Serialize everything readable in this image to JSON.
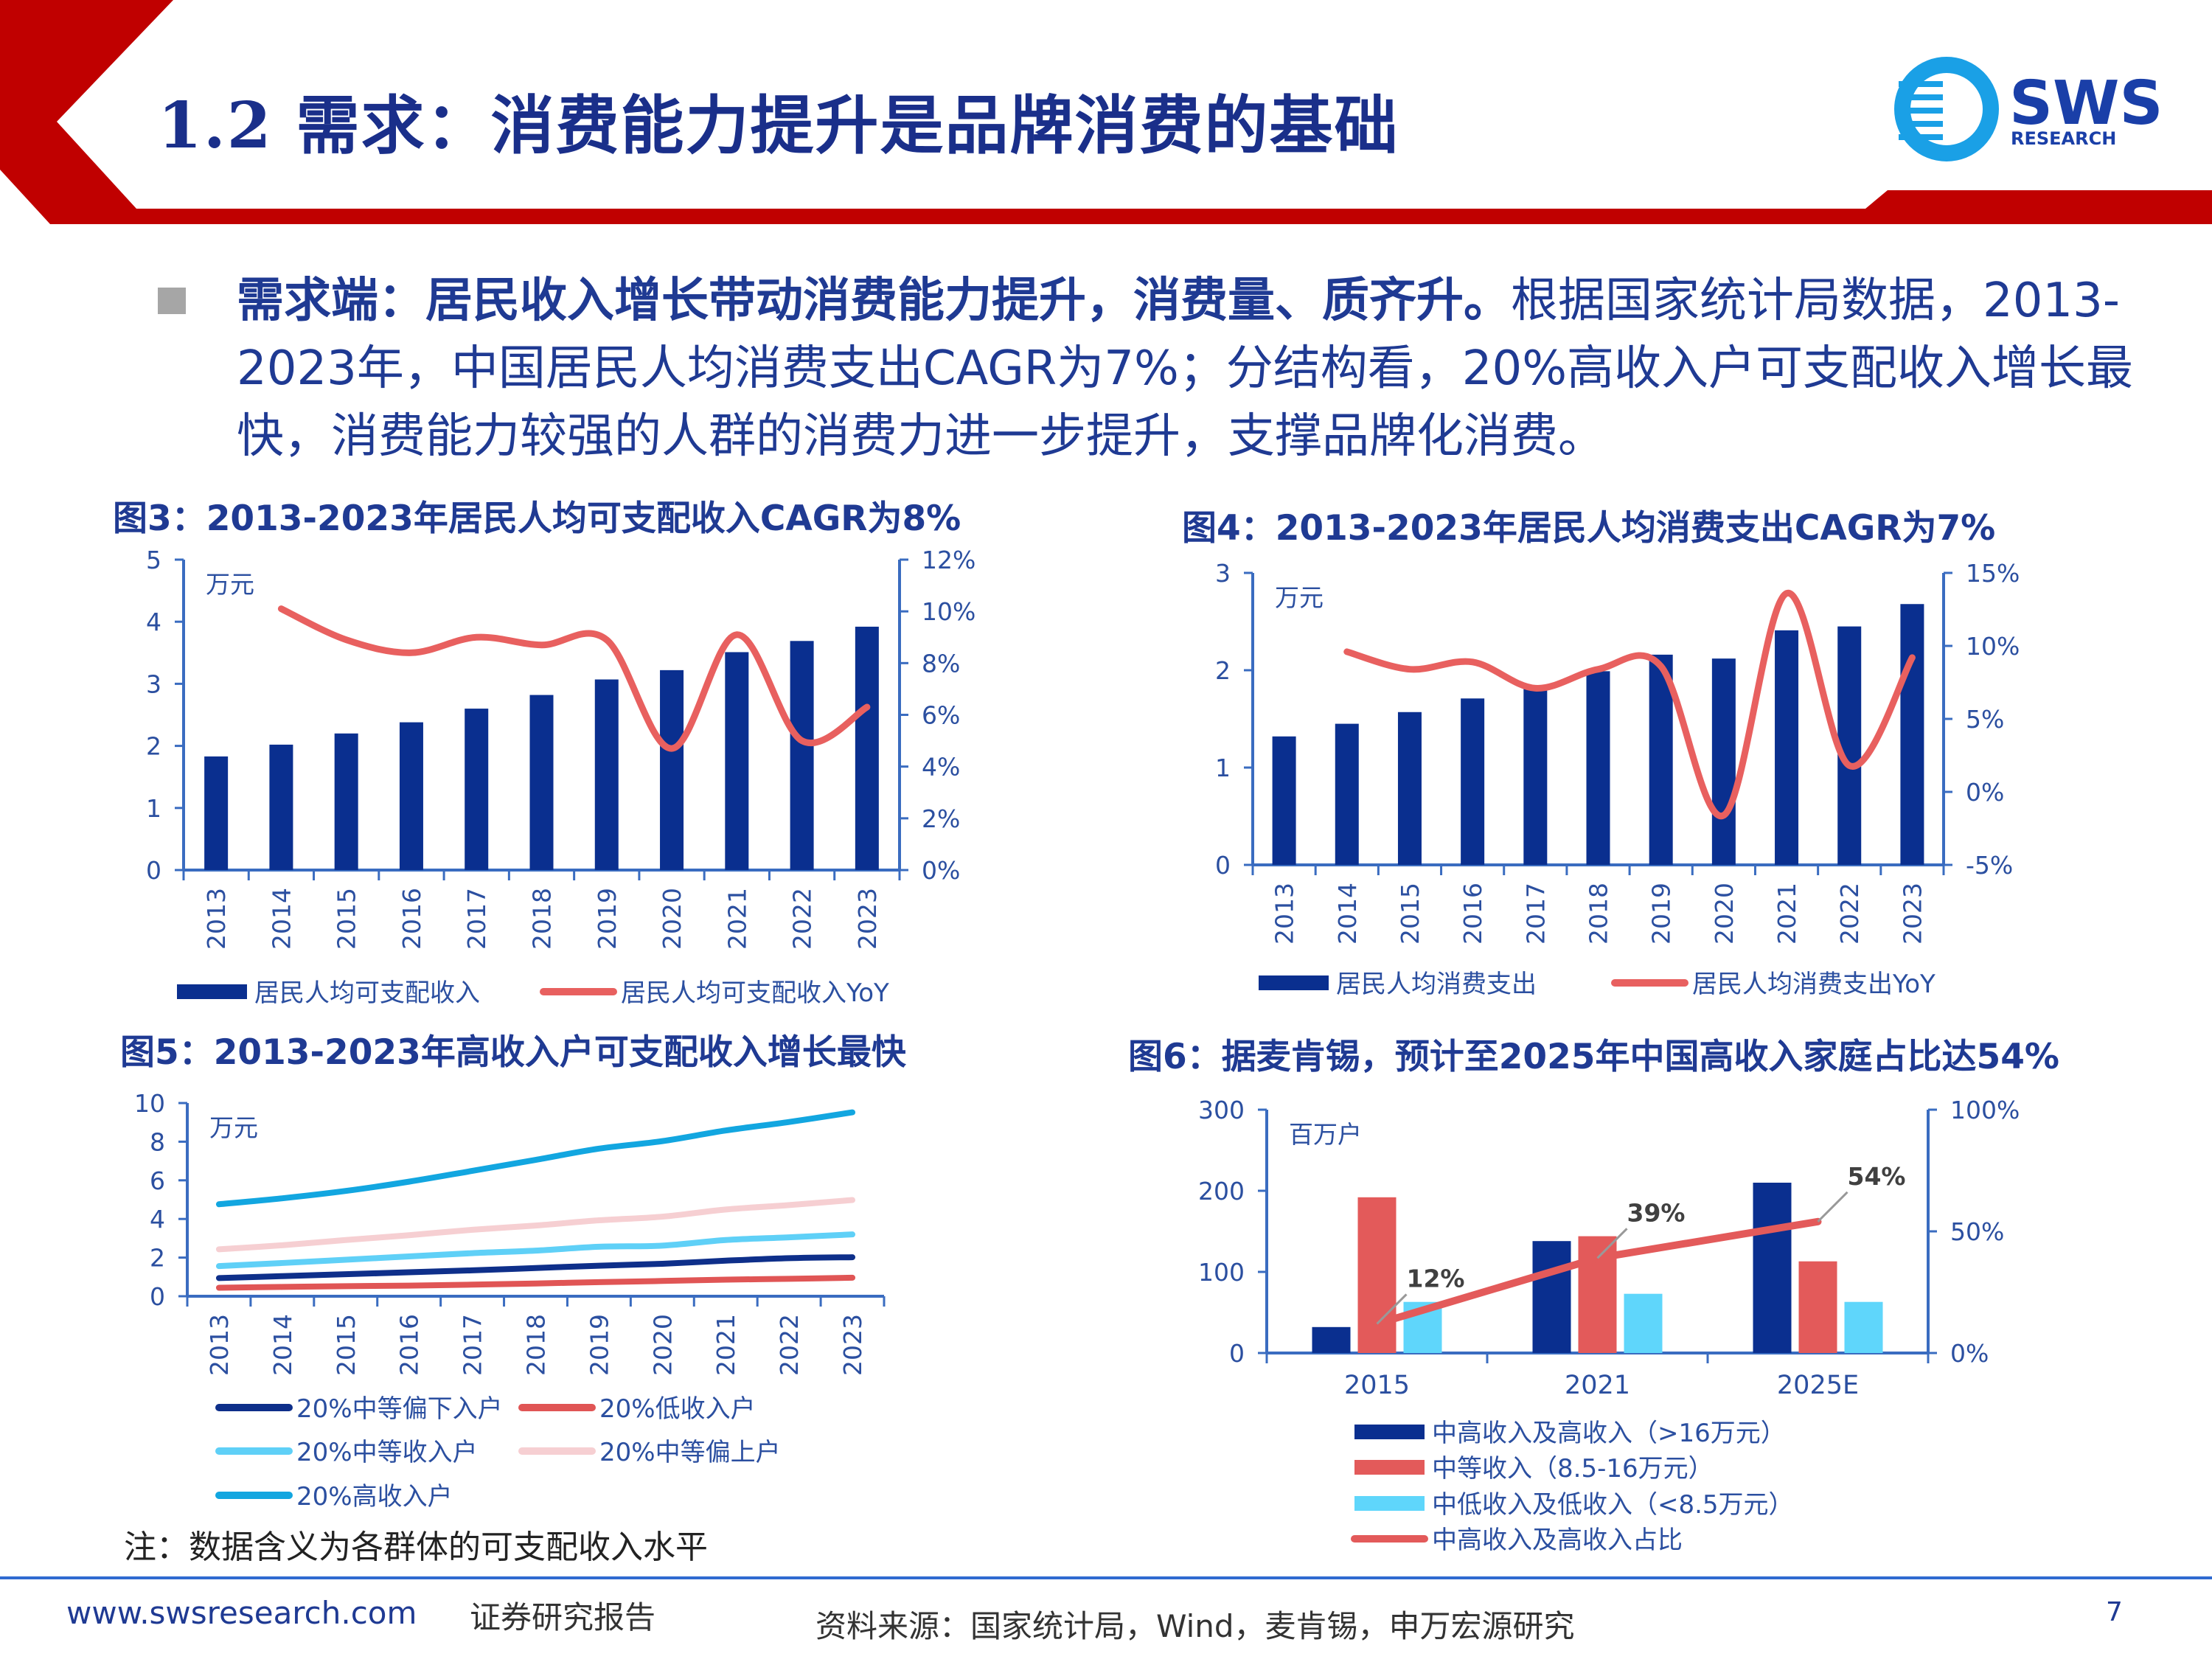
{
  "header": {
    "title": "1.2 需求：消费能力提升是品牌消费的基础",
    "logo_text": "SWS",
    "logo_subtext": "RESEARCH"
  },
  "colors": {
    "red_frame": "#c00000",
    "title_blue": "#1a2f8a",
    "bar_blue": "#0a2f8f",
    "line_red": "#e8605f",
    "axis_blue": "#3a6cc0",
    "cyan": "#55d4fa"
  },
  "body": {
    "bold": "需求端：居民收入增长带动消费能力提升，消费量、质齐升。",
    "text": "根据国家统计局数据，2013-2023年，中国居民人均消费支出CAGR为7%；分结构看，20%高收入户可支配收入增长最快，消费能力较强的人群的消费力进一步提升，支撑品牌化消费。"
  },
  "chart_data": [
    {
      "id": "fig3",
      "type": "bar+line",
      "title": "图3：2013-2023年居民人均可支配收入CAGR为8%",
      "unit": "万元",
      "categories": [
        "2013",
        "2014",
        "2015",
        "2016",
        "2017",
        "2018",
        "2019",
        "2020",
        "2021",
        "2022",
        "2023"
      ],
      "ylim": [
        0,
        5
      ],
      "yticks": [
        "0",
        "1",
        "2",
        "3",
        "4",
        "5"
      ],
      "y2lim": [
        0,
        12
      ],
      "y2ticks": [
        "0%",
        "2%",
        "4%",
        "6%",
        "8%",
        "10%",
        "12%"
      ],
      "series": [
        {
          "name": "居民人均可支配收入",
          "type": "bar",
          "axis": "left",
          "values": [
            1.83,
            2.02,
            2.2,
            2.38,
            2.6,
            2.82,
            3.07,
            3.22,
            3.51,
            3.69,
            3.92
          ]
        },
        {
          "name": "居民人均可支配收入YoY",
          "type": "line",
          "axis": "right",
          "values": [
            null,
            10.1,
            8.9,
            8.4,
            9.0,
            8.7,
            8.9,
            4.7,
            9.1,
            5.0,
            6.3
          ]
        }
      ]
    },
    {
      "id": "fig4",
      "type": "bar+line",
      "title": "图4：2013-2023年居民人均消费支出CAGR为7%",
      "unit": "万元",
      "categories": [
        "2013",
        "2014",
        "2015",
        "2016",
        "2017",
        "2018",
        "2019",
        "2020",
        "2021",
        "2022",
        "2023"
      ],
      "ylim": [
        0,
        3
      ],
      "yticks": [
        "0",
        "1",
        "2",
        "3"
      ],
      "y2lim": [
        -5,
        15
      ],
      "y2ticks": [
        "-5%",
        "0%",
        "5%",
        "10%",
        "15%"
      ],
      "series": [
        {
          "name": "居民人均消费支出",
          "type": "bar",
          "axis": "left",
          "values": [
            1.32,
            1.45,
            1.57,
            1.71,
            1.83,
            1.99,
            2.16,
            2.12,
            2.41,
            2.45,
            2.68
          ]
        },
        {
          "name": "居民人均消费支出YoY",
          "type": "line",
          "axis": "right",
          "values": [
            null,
            9.6,
            8.4,
            8.9,
            7.1,
            8.4,
            8.6,
            -1.6,
            13.6,
            1.8,
            9.2
          ]
        }
      ]
    },
    {
      "id": "fig5",
      "type": "line",
      "title": "图5：2013-2023年高收入户可支配收入增长最快",
      "unit": "万元",
      "categories": [
        "2013",
        "2014",
        "2015",
        "2016",
        "2017",
        "2018",
        "2019",
        "2020",
        "2021",
        "2022",
        "2023"
      ],
      "ylim": [
        0,
        10
      ],
      "yticks": [
        "0",
        "2",
        "4",
        "6",
        "8",
        "10"
      ],
      "series": [
        {
          "name": "20%中等偏下入户",
          "color": "#0e2f8a",
          "values": [
            0.94,
            1.04,
            1.14,
            1.24,
            1.34,
            1.46,
            1.58,
            1.68,
            1.84,
            1.97,
            2.02
          ]
        },
        {
          "name": "20%低收入户",
          "color": "#e05555",
          "values": [
            0.44,
            0.48,
            0.52,
            0.55,
            0.6,
            0.66,
            0.73,
            0.79,
            0.86,
            0.9,
            0.96
          ]
        },
        {
          "name": "20%中等收入户",
          "color": "#5fd0f7",
          "values": [
            1.56,
            1.72,
            1.89,
            2.06,
            2.23,
            2.36,
            2.56,
            2.62,
            2.91,
            3.05,
            3.2
          ]
        },
        {
          "name": "20%中等偏上户",
          "color": "#f6cfd2",
          "values": [
            2.43,
            2.64,
            2.91,
            3.16,
            3.44,
            3.66,
            3.93,
            4.12,
            4.49,
            4.72,
            4.98
          ]
        },
        {
          "name": "20%高收入户",
          "color": "#12a6e0",
          "values": [
            4.76,
            5.07,
            5.45,
            5.93,
            6.49,
            7.06,
            7.64,
            8.03,
            8.58,
            9.02,
            9.52
          ]
        }
      ],
      "note": "注：数据含义为各群体的可支配收入水平"
    },
    {
      "id": "fig6",
      "type": "bar+line",
      "title": "图6：据麦肯锡，预计至2025年中国高收入家庭占比达54%",
      "unit": "百万户",
      "categories": [
        "2015",
        "2021",
        "2025E"
      ],
      "ylim": [
        0,
        300
      ],
      "yticks": [
        "0",
        "100",
        "200",
        "300"
      ],
      "y2lim": [
        0,
        100
      ],
      "y2ticks": [
        "0%",
        "50%",
        "100%"
      ],
      "series": [
        {
          "name": "中高收入及高收入（>16万元）",
          "type": "bar",
          "color": "#0a2f8f",
          "values": [
            32,
            138,
            210
          ]
        },
        {
          "name": "中等收入（8.5-16万元）",
          "type": "bar",
          "color": "#e35a5a",
          "values": [
            192,
            144,
            113
          ]
        },
        {
          "name": "中低收入及低收入（<8.5万元）",
          "type": "bar",
          "color": "#5fd6fb",
          "values": [
            63,
            73,
            63
          ]
        },
        {
          "name": "中高收入及高收入占比",
          "type": "line",
          "axis": "right",
          "color": "#e35a5a",
          "values": [
            12,
            39,
            54
          ],
          "labels": [
            "12%",
            "39%",
            "54%"
          ]
        }
      ]
    }
  ],
  "footer": {
    "website": "www.swsresearch.com",
    "report_type": "证券研究报告",
    "source": "资料来源：国家统计局，Wind，麦肯锡，申万宏源研究",
    "page": "7"
  }
}
